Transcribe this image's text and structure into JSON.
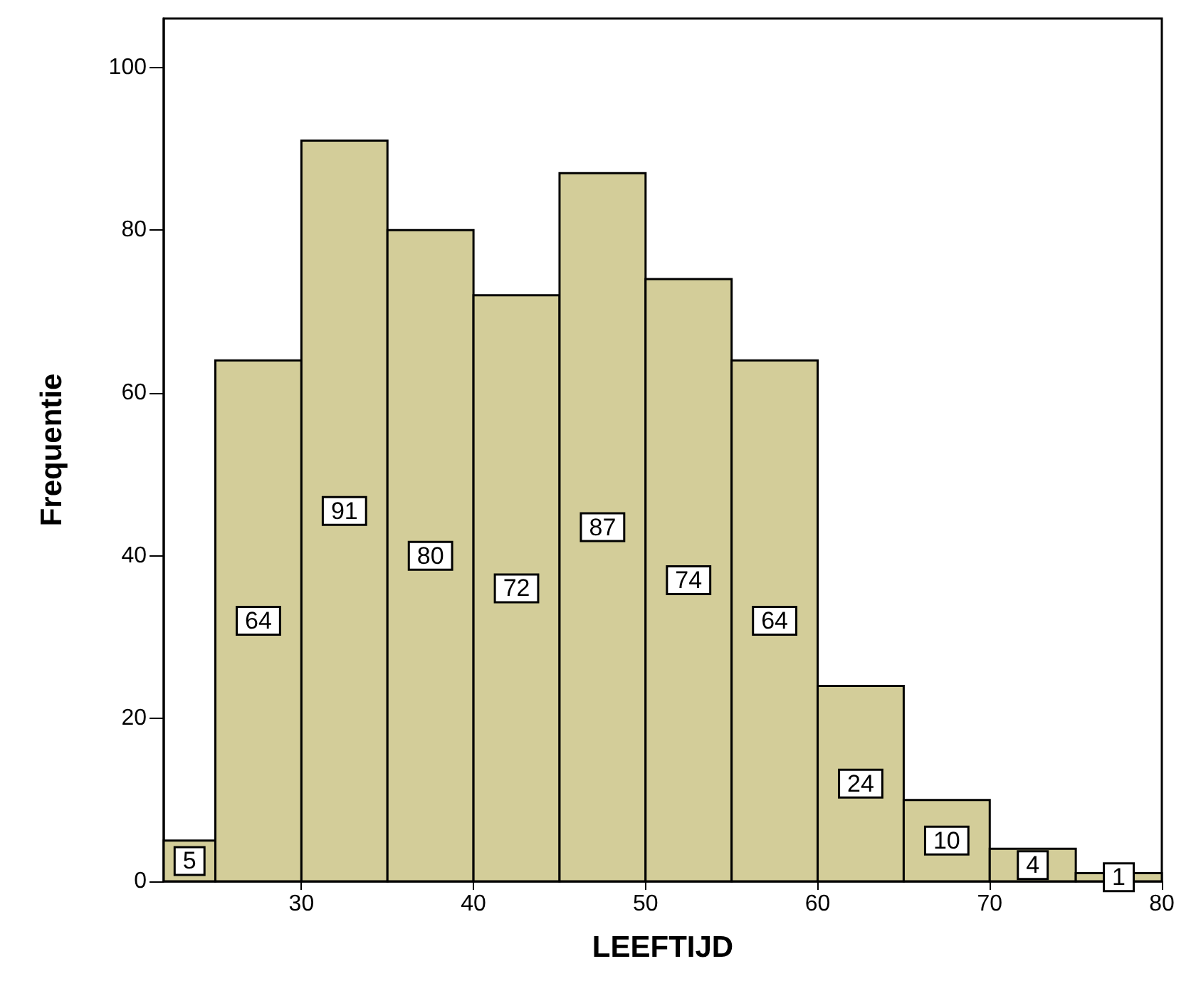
{
  "chart_data": {
    "type": "histogram",
    "xlabel": "LEEFTIJD",
    "ylabel": "Frequentie",
    "bins": [
      22,
      25,
      30,
      35,
      40,
      45,
      50,
      55,
      60,
      65,
      70,
      75,
      80
    ],
    "values": [
      5,
      64,
      91,
      80,
      72,
      87,
      74,
      64,
      24,
      10,
      4,
      1
    ],
    "color": "#d3cd99",
    "data_labels": true,
    "xlim": [
      22,
      80
    ],
    "xticks": [
      30,
      40,
      50,
      60,
      70,
      80
    ],
    "ylim": [
      0,
      106
    ],
    "yticks": [
      0,
      20,
      40,
      60,
      80,
      100
    ],
    "grid": false
  }
}
